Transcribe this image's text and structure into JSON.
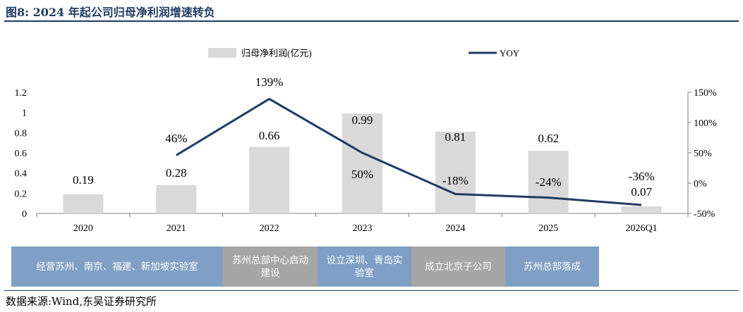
{
  "figure": {
    "title": "图8:  2024 年起公司归母净利润增速转负",
    "source": "数据来源:Wind,东吴证券研究所"
  },
  "chart_data": {
    "type": "bar+line",
    "categories": [
      "2020",
      "2021",
      "2022",
      "2023",
      "2024",
      "2025",
      "2026Q1"
    ],
    "series": [
      {
        "name": "归母净利润(亿元)",
        "type": "bar",
        "axis": "left",
        "color": "#d9d9d9",
        "values": [
          0.19,
          0.28,
          0.66,
          0.99,
          0.81,
          0.62,
          0.07
        ],
        "labels": [
          "0.19",
          "0.28",
          "0.66",
          "0.99",
          "0.81",
          "0.62",
          "0.07"
        ]
      },
      {
        "name": "YOY",
        "type": "line",
        "axis": "right",
        "color": "#1f3b63",
        "values": [
          null,
          46,
          139,
          50,
          -18,
          -24,
          -36
        ],
        "labels": [
          "",
          "46%",
          "139%",
          "50%",
          "-18%",
          "-24%",
          "-36%"
        ]
      }
    ],
    "y_left": {
      "min": 0,
      "max": 1.2,
      "ticks": [
        "0",
        "0.2",
        "0.4",
        "0.6",
        "0.8",
        "1",
        "1.2"
      ]
    },
    "y_right": {
      "min": -50,
      "max": 150,
      "ticks": [
        "-50%",
        "0%",
        "50%",
        "100%",
        "150%"
      ]
    },
    "legend_position": "top-center",
    "grid": false
  },
  "bands": [
    {
      "label": "经营苏州、南京、福建、新加坡实验室",
      "color": "#7f9fc4"
    },
    {
      "label": "苏州总部中心启动建设",
      "color": "#a6a6a6"
    },
    {
      "label": "设立深圳、青岛实验室",
      "color": "#7f9fc4"
    },
    {
      "label": "成立北京子公司",
      "color": "#a6a6a6"
    },
    {
      "label": "苏州总部落成",
      "color": "#7f9fc4"
    }
  ]
}
